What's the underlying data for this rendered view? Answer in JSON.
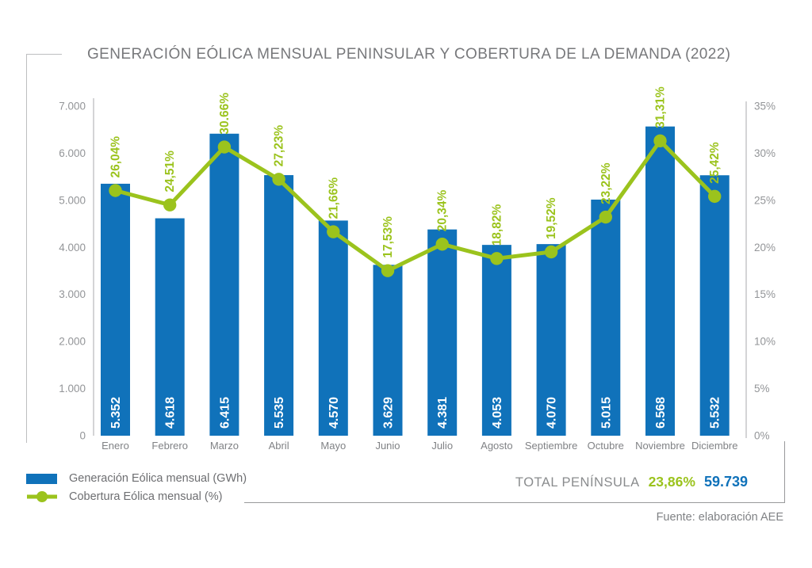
{
  "title": "GENERACIÓN EÓLICA MENSUAL PENINSULAR Y COBERTURA DE LA DEMANDA (2022)",
  "colors": {
    "bar": "#1072BA",
    "line": "#9BC31D",
    "title": "#77787B",
    "ticks": "#939598",
    "months": "#808285",
    "legend_text": "#6D6E71",
    "total_label": "#8A8C8E",
    "axis": "#C9CACB",
    "bracket": "#BDBEC0",
    "divider": "#98999B"
  },
  "chart_data": {
    "type": "bar+line",
    "categories": [
      "Enero",
      "Febrero",
      "Marzo",
      "Abril",
      "Mayo",
      "Junio",
      "Julio",
      "Agosto",
      "Septiembre",
      "Octubre",
      "Noviembre",
      "Diciembre"
    ],
    "series": [
      {
        "name": "Generación Eólica mensual (GWh)",
        "type": "bar",
        "unit": "GWh",
        "values": [
          5352,
          4618,
          6415,
          5535,
          4570,
          3629,
          4381,
          4053,
          4070,
          5015,
          6568,
          5532
        ],
        "value_labels": [
          "5.352",
          "4.618",
          "6.415",
          "5.535",
          "4.570",
          "3.629",
          "4.381",
          "4.053",
          "4.070",
          "5.015",
          "6.568",
          "5.532"
        ]
      },
      {
        "name": "Cobertura Eólica mensual (%)",
        "type": "line",
        "unit": "%",
        "values": [
          26.04,
          24.51,
          30.66,
          27.23,
          21.66,
          17.53,
          20.34,
          18.82,
          19.52,
          23.22,
          31.31,
          25.42
        ],
        "value_labels": [
          "26,04%",
          "24,51%",
          "30.66%",
          "27,23%",
          "21,66%",
          "17,53%",
          "20,34%",
          "18,82%",
          "19,52%",
          "23,22%",
          "31,31%",
          "25,42%"
        ]
      }
    ],
    "left_axis": {
      "ticks": [
        "0",
        "1.000",
        "2.000",
        "3.000",
        "4.000",
        "5.000",
        "6.000",
        "7.000"
      ],
      "range": [
        0,
        7000
      ]
    },
    "right_axis": {
      "ticks": [
        "0%",
        "5%",
        "10%",
        "15%",
        "20%",
        "25%",
        "30%",
        "35%"
      ],
      "range": [
        0,
        35
      ]
    },
    "grid": false,
    "legend_position": "bottom-left"
  },
  "legend": {
    "items": [
      {
        "label": "Generación Eólica mensual (GWh)",
        "swatch": "bar-blue"
      },
      {
        "label": "Cobertura Eólica mensual (%)",
        "swatch": "line-green"
      }
    ]
  },
  "footer": {
    "total_label": "TOTAL PENÍNSULA",
    "total_percent": "23,86%",
    "total_value": "59.739",
    "source": "Fuente: elaboración AEE"
  }
}
